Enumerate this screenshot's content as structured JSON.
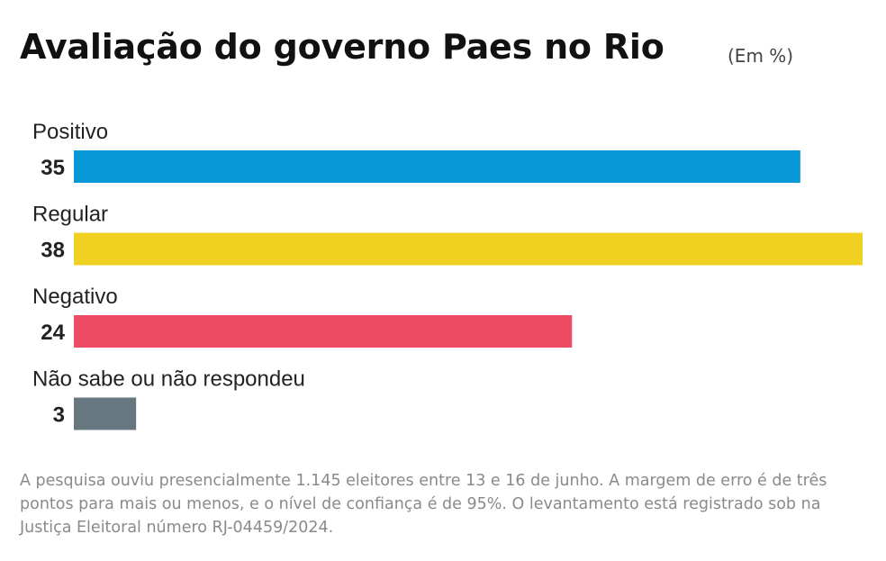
{
  "title": "Avaliação do governo Paes no Rio",
  "unit": "(Em %)",
  "chart_data": {
    "type": "bar",
    "orientation": "horizontal",
    "title": "Avaliação do governo Paes no Rio",
    "categories": [
      "Positivo",
      "Regular",
      "Negativo",
      "Não sabe ou não respondeu"
    ],
    "values": [
      35,
      38,
      24,
      3
    ],
    "colors": [
      "#0898d8",
      "#f0d020",
      "#ee4c64",
      "#66777f"
    ],
    "xlim": [
      0,
      38
    ],
    "grid": false,
    "legend": "none"
  },
  "footnote": "A pesquisa ouviu presencialmente 1.145 eleitores entre 13 e 16 de junho. A margem de erro é de três pontos para mais ou menos, e o nível de confiança é de 95%. O levantamento está registrado sob na Justiça Eleitoral número RJ-04459/2024."
}
